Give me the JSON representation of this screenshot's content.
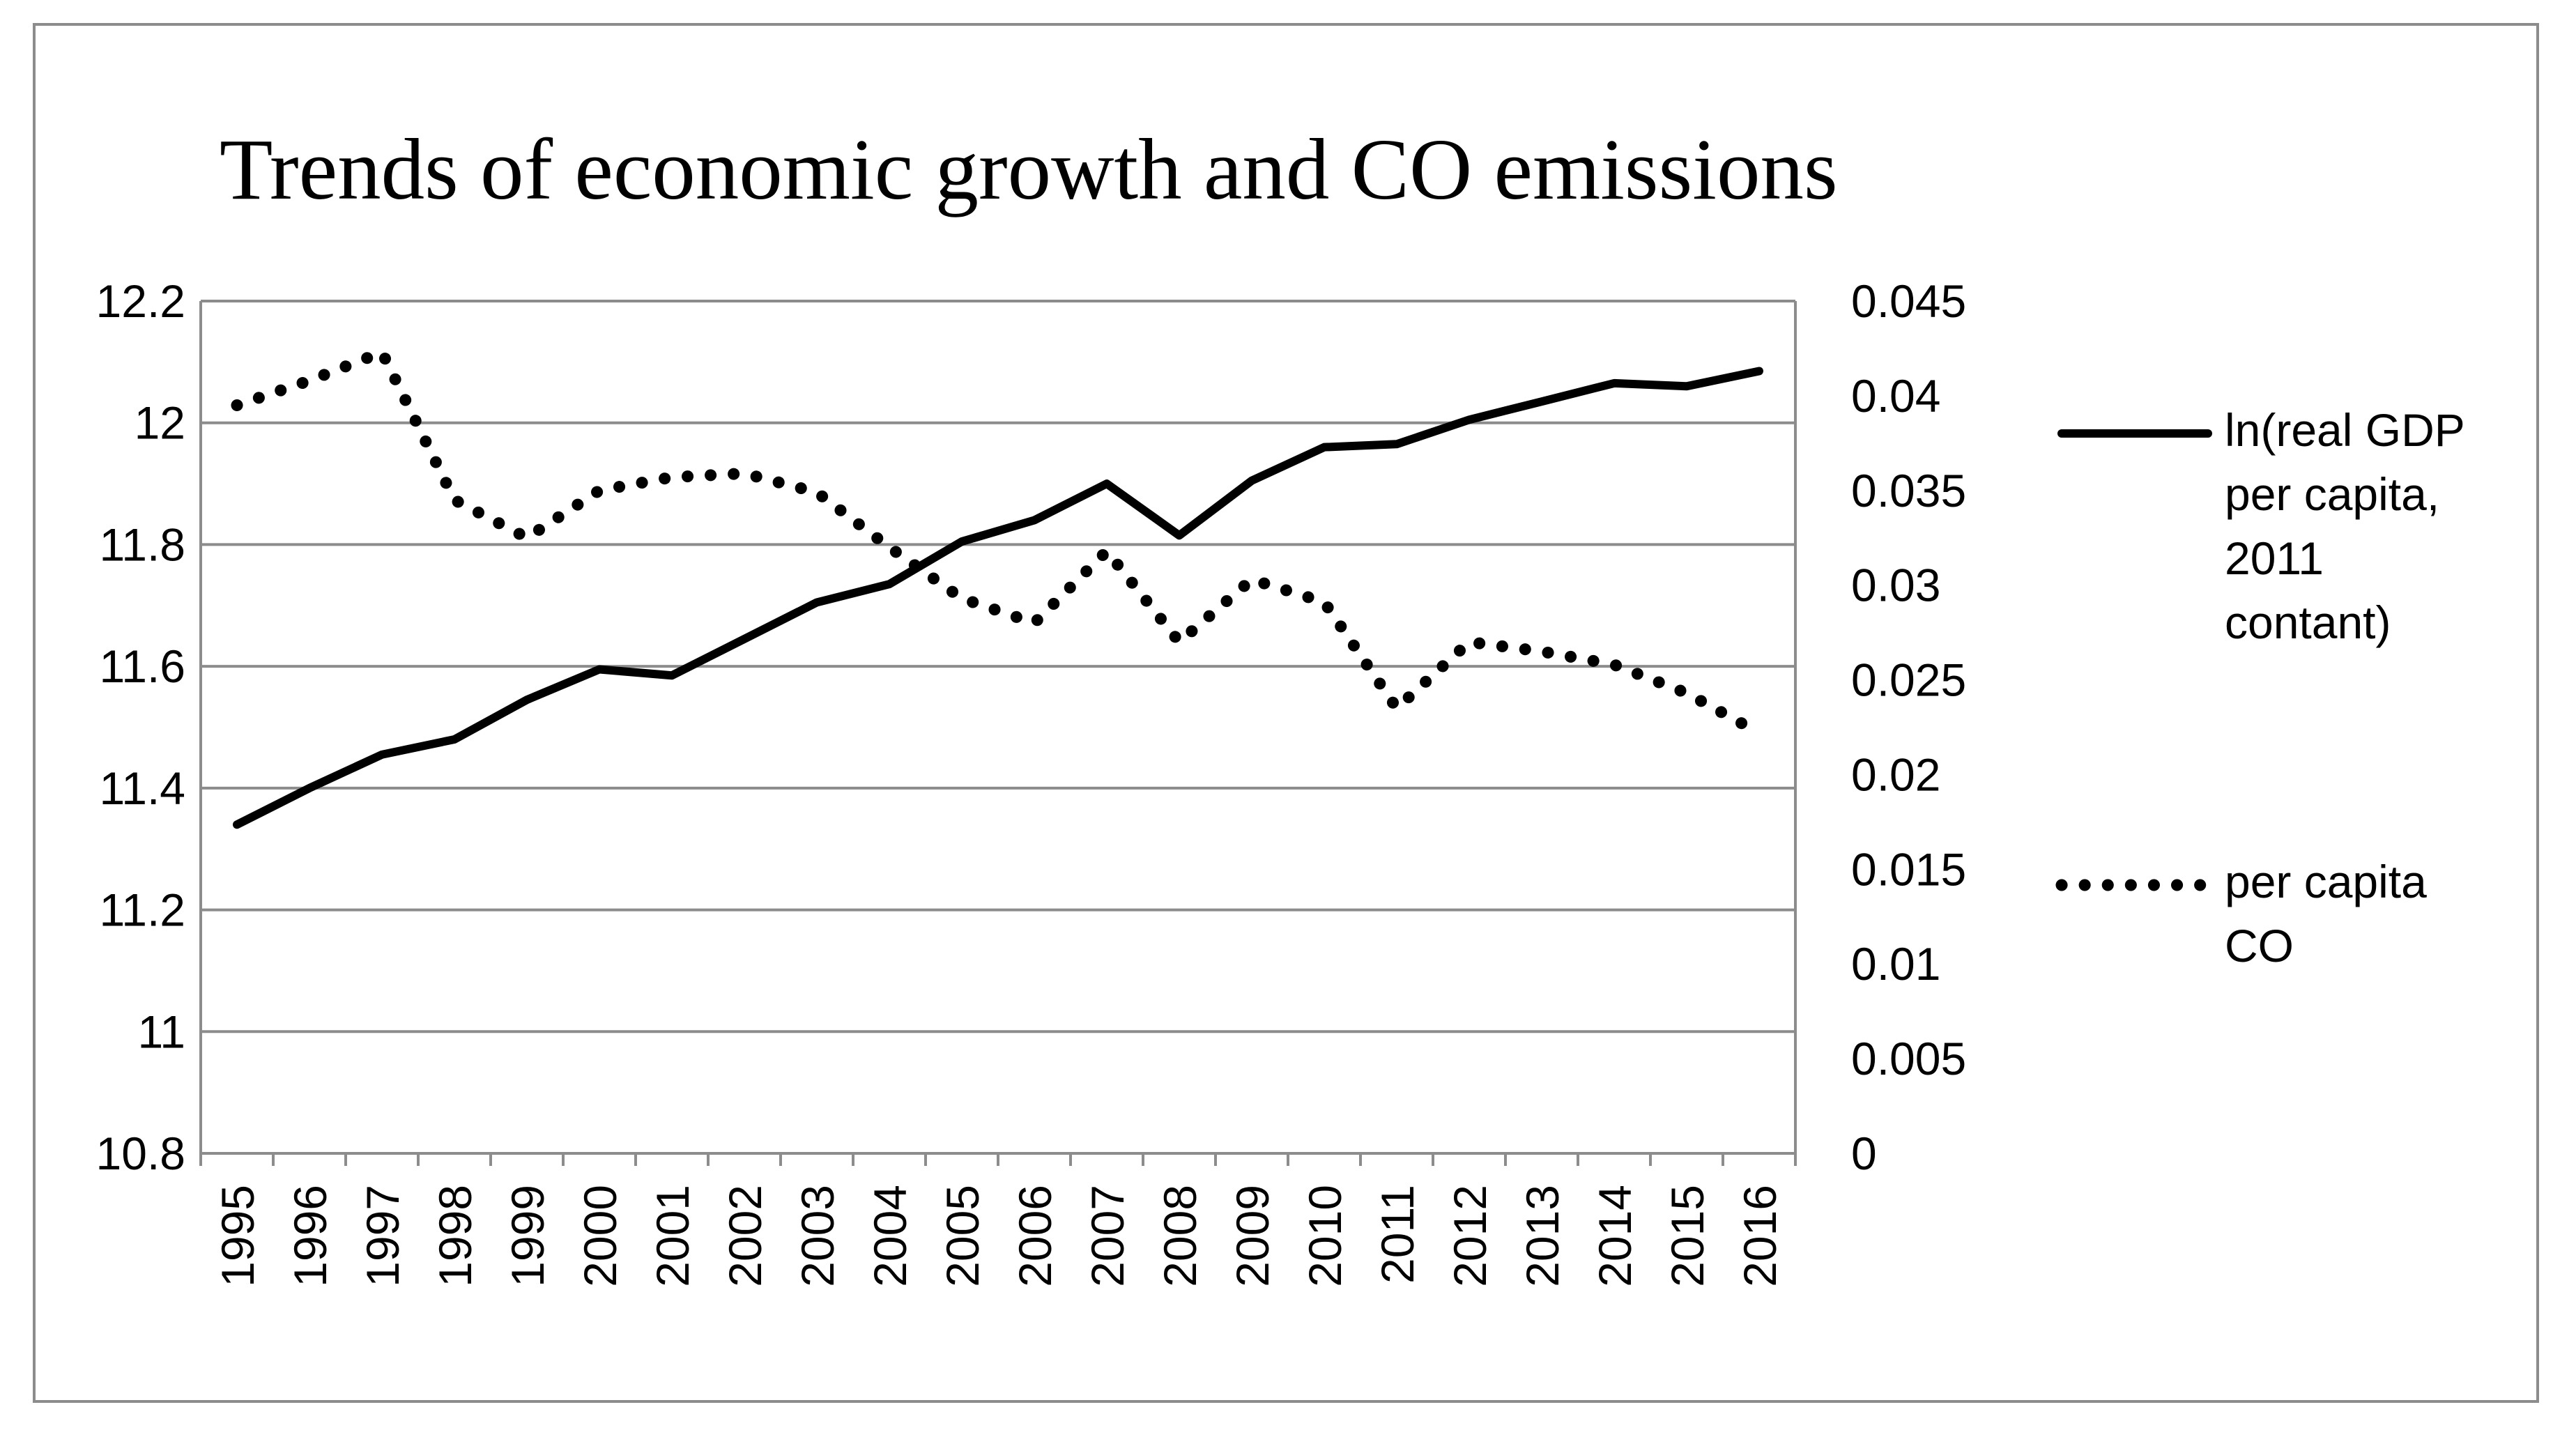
{
  "chart_data": {
    "type": "line",
    "title": "Trends of economic growth and CO emissions",
    "categories": [
      "1995",
      "1996",
      "1997",
      "1998",
      "1999",
      "2000",
      "2001",
      "2002",
      "2003",
      "2004",
      "2005",
      "2006",
      "2007",
      "2008",
      "2009",
      "2010",
      "2011",
      "2012",
      "2013",
      "2014",
      "2015",
      "2016"
    ],
    "ylim_left": [
      10.8,
      12.2
    ],
    "yticks_left": [
      "12.2",
      "12",
      "11.8",
      "11.6",
      "11.4",
      "11.2",
      "11",
      "10.8"
    ],
    "ylim_right": [
      0,
      0.045
    ],
    "yticks_right": [
      "0.045",
      "0.04",
      "0.035",
      "0.03",
      "0.025",
      "0.02",
      "0.015",
      "0.01",
      "0.005",
      "0"
    ],
    "grid": true,
    "legend_position": "right",
    "series": [
      {
        "name": "ln(real GDP per capita, 2011 contant)",
        "legend_lines": [
          "ln(real GDP",
          "per capita,",
          "2011",
          "contant)"
        ],
        "axis": "left",
        "style": "solid",
        "values": [
          11.34,
          11.4,
          11.455,
          11.48,
          11.545,
          11.595,
          11.585,
          11.645,
          11.705,
          11.735,
          11.805,
          11.84,
          11.9,
          11.815,
          11.905,
          11.96,
          11.965,
          12.005,
          12.035,
          12.065,
          12.06,
          12.085
        ]
      },
      {
        "name": "per capita CO",
        "legend_lines": [
          "per capita",
          "CO"
        ],
        "axis": "right",
        "style": "dotted",
        "values": [
          0.0395,
          0.0408,
          0.0423,
          0.0345,
          0.0325,
          0.035,
          0.0357,
          0.0359,
          0.0349,
          0.032,
          0.0293,
          0.028,
          0.0318,
          0.027,
          0.0303,
          0.0291,
          0.0235,
          0.027,
          0.0265,
          0.0258,
          0.0243,
          0.0222
        ]
      }
    ]
  }
}
